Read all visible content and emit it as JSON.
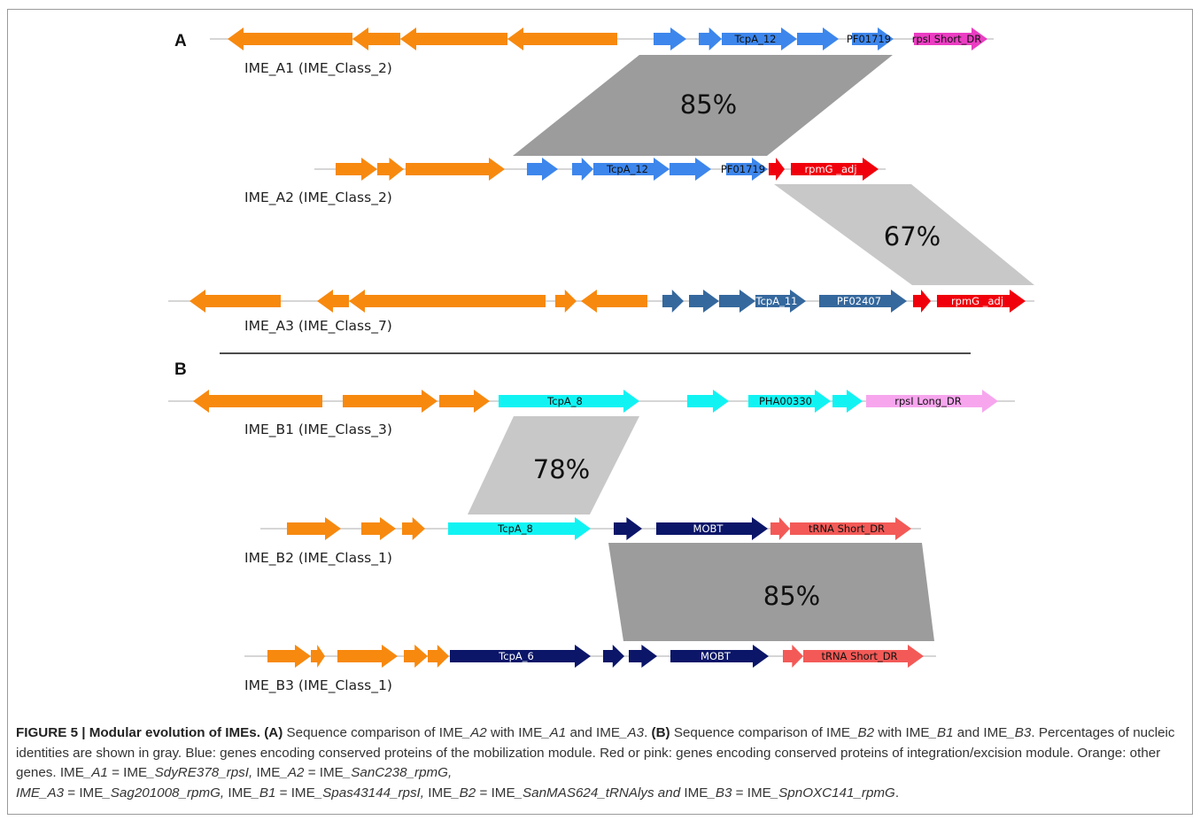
{
  "colors": {
    "orange": "#f7890f",
    "blue": "#3d86ec",
    "steel_blue": "#35689d",
    "navy": "#0b1669",
    "cyan": "#11f3f3",
    "red": "#f0000b",
    "salmon": "#f35a57",
    "magenta": "#eb3dc2",
    "pink": "#f7a6ee",
    "gray_dark": "#9c9c9c",
    "gray_light": "#c8c8c8",
    "backbone": "#c9c9c9"
  },
  "panels": [
    {
      "label": "A"
    },
    {
      "label": "B"
    }
  ],
  "rows": [
    {
      "id": "a1",
      "label": "IME_A1 (IME_Class_2)"
    },
    {
      "id": "a2",
      "label": "IME_A2 (IME_Class_2)"
    },
    {
      "id": "a3",
      "label": "IME_A3 (IME_Class_7)"
    },
    {
      "id": "b1",
      "label": "IME_B1 (IME_Class_3)"
    },
    {
      "id": "b2",
      "label": "IME_B2 (IME_Class_1)"
    },
    {
      "id": "b3",
      "label": "IME_B3 (IME_Class_1)"
    }
  ],
  "gene_labels": {
    "a1_tcpa": "TcpA_12",
    "a1_pf": "PF01719",
    "a1_rps": "rpsI Short_DR",
    "a2_tcpa": "TcpA_12",
    "a2_pf": "PF01719",
    "a2_rpm": "rpmG _adj",
    "a3_tcpa": "TcpA_11",
    "a3_pf": "PF02407",
    "a3_rpm": "rpmG _adj",
    "b1_tcpa": "TcpA_8",
    "b1_pha": "PHA00330",
    "b1_rps": "rpsI Long_DR",
    "b2_tcpa": "TcpA_8",
    "b2_mobt": "MOBT",
    "b2_trna": "tRNA Short_DR",
    "b3_tcpa": "TcpA_6",
    "b3_mobt": "MOBT",
    "b3_trna": "tRNA Short_DR"
  },
  "identities": [
    {
      "id": "a1a2",
      "value": "85%"
    },
    {
      "id": "a2a3",
      "value": "67%"
    },
    {
      "id": "b1b2",
      "value": "78%"
    },
    {
      "id": "b2b3",
      "value": "85%"
    }
  ],
  "caption": {
    "figure_title": "FIGURE 5 | Modular evolution of IMEs.",
    "part_a": "(A)",
    "text_a1": " Sequence comparison of IME",
    "a2": "_A2",
    "text_a2": " with IME",
    "a1": "_A1",
    "text_a3": " and IME",
    "a3": "_A3",
    "text_a4": ". ",
    "part_b": "(B)",
    "text_b1": " Sequence comparison of IME",
    "b2": "_B2",
    "text_b2": " with IME",
    "b1": "_B1",
    "text_b3": " and IME",
    "b3": "_B3",
    "text_b4": ". Percentages of nucleic identities are shown in gray. Blue: genes encoding conserved proteins of the mobilization module. Red or pink: genes encoding conserved proteins of integration/excision module. Orange: other genes. IME",
    "m1_key": "_A1",
    "m1_eq": " = IME",
    "m1_val": "_SdyRE378_rpsI,",
    "m2_pre": " IME",
    "m2_key": "_A2",
    "m2_eq": " = IME",
    "m2_val": "_SanC238_rpmG,",
    "m3_key": "IME_A3",
    "m3_eq": " = IME",
    "m3_val": "_Sag201008_rpmG,",
    "m4_pre": " IME",
    "m4_key": "_B1",
    "m4_eq": " = IME",
    "m4_val": "_Spas43144_rpsI,",
    "m5_pre": " IME",
    "m5_key": "_B2",
    "m5_eq": " = IME",
    "m5_val": "_SanMAS624_tRNAlys and",
    "m6_pre": " IME",
    "m6_key": "_B3",
    "m6_eq": " = IME",
    "m6_val": "_SpnOXC141_rpmG",
    "end": "."
  }
}
